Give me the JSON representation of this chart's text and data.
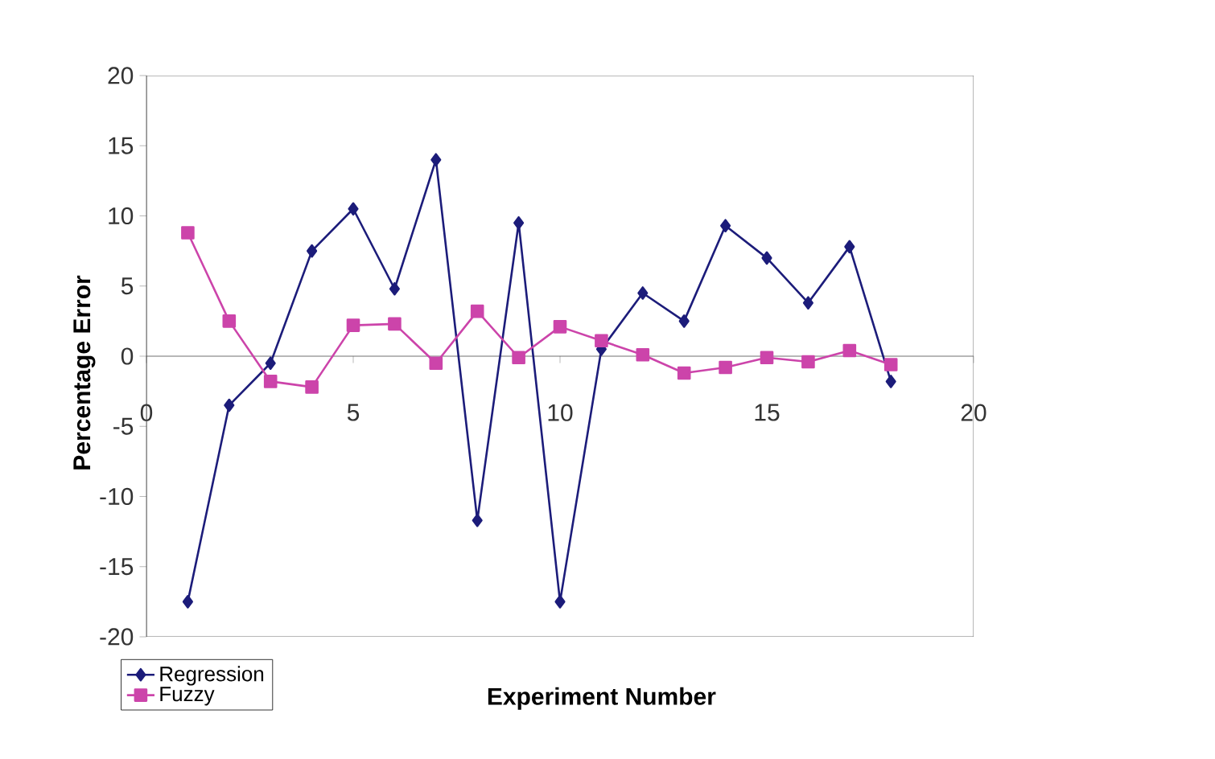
{
  "chart_data": {
    "type": "line",
    "xlabel": "Experiment Number",
    "ylabel": "Percentage Error",
    "x": [
      1,
      2,
      3,
      4,
      5,
      6,
      7,
      8,
      9,
      10,
      11,
      12,
      13,
      14,
      15,
      16,
      17,
      18
    ],
    "series": [
      {
        "name": "Regression",
        "color": "#1c1c7a",
        "marker": "diamond",
        "values": [
          -17.5,
          -3.5,
          -0.5,
          7.5,
          10.5,
          4.8,
          14,
          -11.7,
          9.5,
          -17.5,
          0.5,
          4.5,
          2.5,
          9.3,
          7,
          3.8,
          7.8,
          -1.8
        ]
      },
      {
        "name": "Fuzzy",
        "color": "#cc44aa",
        "marker": "square",
        "values": [
          8.8,
          2.5,
          -1.8,
          -2.2,
          2.2,
          2.3,
          -0.5,
          3.2,
          -0.1,
          2.1,
          1.1,
          0.1,
          -1.2,
          -0.8,
          -0.1,
          -0.4,
          0.4,
          -0.6
        ]
      }
    ],
    "xlim": [
      0,
      20
    ],
    "xticks": [
      0,
      5,
      10,
      15,
      20
    ],
    "ylim": [
      -20,
      20
    ],
    "yticks": [
      -20,
      -15,
      -10,
      -5,
      0,
      5,
      10,
      15,
      20
    ],
    "legend": "bottom left",
    "grid": false,
    "line_style": "solid"
  }
}
